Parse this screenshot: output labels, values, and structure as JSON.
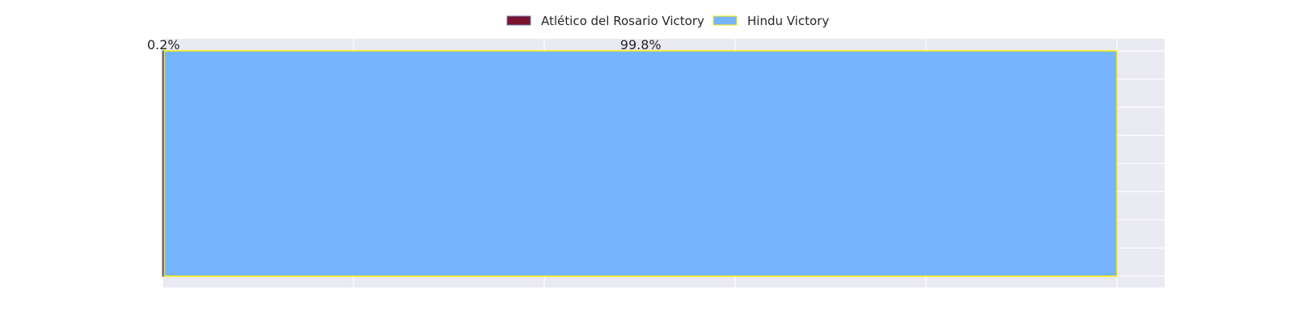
{
  "chart_data": {
    "type": "bar",
    "orientation": "horizontal-stacked-100",
    "categories": [
      ""
    ],
    "series": [
      {
        "name": "Atlético del Rosario Victory",
        "values": [
          0.2
        ],
        "color": "#7b1230",
        "edge_color": "#6d7fb0"
      },
      {
        "name": "Hindu Victory",
        "values": [
          99.8
        ],
        "color": "#76b5fe",
        "edge_color": "#ffee00"
      }
    ],
    "value_labels": [
      "0.2%",
      "99.8%"
    ],
    "xlim": [
      0,
      105
    ],
    "grid": true,
    "legend_position": "top-center",
    "background_color": "#eaeaf2",
    "grid_color": "#ffffff"
  }
}
